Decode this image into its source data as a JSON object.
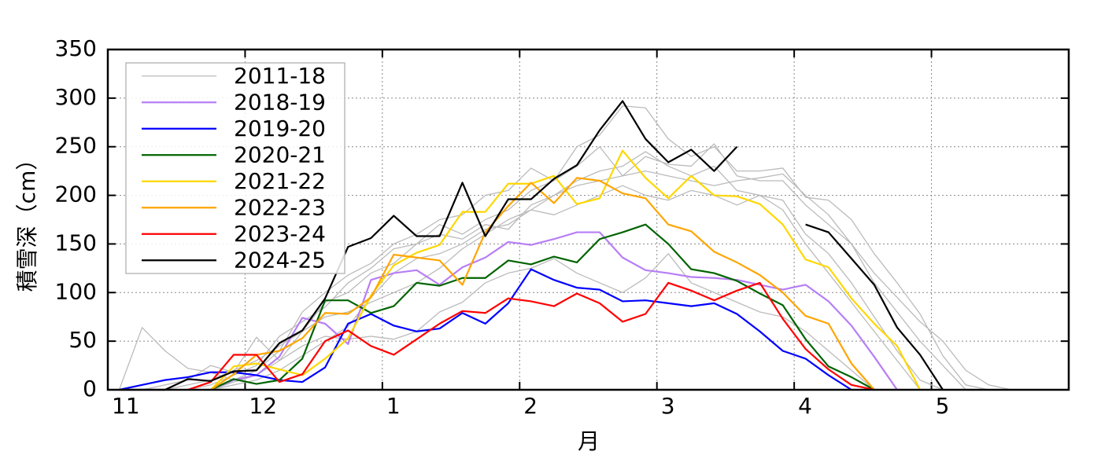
{
  "chart_data": {
    "type": "line",
    "xlabel": "月",
    "ylabel": "積雪深（cm）",
    "xlim": [
      0,
      7
    ],
    "ylim": [
      0,
      350
    ],
    "xticks": [
      {
        "value": 0,
        "label": "11"
      },
      {
        "value": 1,
        "label": "12"
      },
      {
        "value": 2,
        "label": "1"
      },
      {
        "value": 3,
        "label": "2"
      },
      {
        "value": 4,
        "label": "3"
      },
      {
        "value": 5,
        "label": "4"
      },
      {
        "value": 6,
        "label": "5"
      }
    ],
    "yticks": [
      0,
      50,
      100,
      150,
      200,
      250,
      300,
      350
    ],
    "grid": true,
    "legend": "upper left",
    "x": [
      0.083,
      0.25,
      0.417,
      0.583,
      0.75,
      0.917,
      1.083,
      1.25,
      1.417,
      1.583,
      1.75,
      1.917,
      2.083,
      2.25,
      2.417,
      2.583,
      2.75,
      2.917,
      3.083,
      3.25,
      3.417,
      3.583,
      3.75,
      3.917,
      4.083,
      4.25,
      4.417,
      4.583,
      4.75,
      4.917,
      5.083,
      5.25,
      5.417,
      5.583,
      5.75,
      5.917,
      6.083,
      6.25,
      6.417,
      6.583,
      6.75,
      6.917
    ],
    "series": [
      {
        "name": "2011-18",
        "color": "#bbbbbb",
        "values": [
          [
            0,
            64,
            40,
            22,
            18,
            10,
            20,
            40,
            80,
            100,
            118,
            130,
            150,
            160,
            175,
            180,
            200,
            205,
            228,
            215,
            250,
            262,
            292,
            290,
            258,
            240,
            250,
            225,
            225,
            228,
            198,
            195,
            175,
            140,
            110,
            78,
            35,
            5,
            0,
            0,
            0,
            0
          ],
          [
            0,
            0,
            5,
            10,
            25,
            18,
            54,
            30,
            60,
            90,
            100,
            120,
            130,
            150,
            170,
            160,
            175,
            185,
            205,
            215,
            230,
            250,
            220,
            240,
            232,
            230,
            253,
            220,
            215,
            215,
            190,
            170,
            150,
            110,
            80,
            50,
            25,
            0,
            0,
            0,
            0,
            0
          ],
          [
            0,
            0,
            0,
            0,
            5,
            15,
            25,
            55,
            70,
            85,
            110,
            125,
            145,
            150,
            160,
            155,
            170,
            165,
            190,
            200,
            215,
            225,
            230,
            245,
            230,
            220,
            230,
            205,
            200,
            195,
            160,
            140,
            110,
            75,
            40,
            10,
            0,
            0,
            0,
            0,
            0,
            0
          ],
          [
            0,
            0,
            0,
            5,
            10,
            20,
            30,
            45,
            60,
            75,
            80,
            90,
            100,
            110,
            125,
            145,
            160,
            175,
            185,
            180,
            190,
            200,
            210,
            200,
            195,
            205,
            200,
            190,
            200,
            185,
            150,
            120,
            90,
            60,
            30,
            0,
            0,
            0,
            0,
            0,
            0,
            0
          ],
          [
            0,
            0,
            0,
            0,
            0,
            8,
            15,
            30,
            45,
            55,
            52,
            55,
            52,
            60,
            80,
            90,
            110,
            120,
            125,
            135,
            120,
            110,
            100,
            115,
            140,
            110,
            100,
            90,
            80,
            75,
            60,
            40,
            20,
            0,
            0,
            0,
            0,
            0,
            0,
            0,
            0,
            0
          ],
          [
            0,
            0,
            0,
            0,
            0,
            5,
            10,
            20,
            35,
            50,
            65,
            95,
            120,
            135,
            140,
            150,
            165,
            170,
            185,
            200,
            210,
            215,
            220,
            225,
            220,
            215,
            210,
            215,
            218,
            222,
            200,
            180,
            150,
            120,
            95,
            70,
            50,
            20,
            5,
            0,
            0,
            0
          ]
        ]
      },
      {
        "name": "2018-19",
        "color": "#b77ef5",
        "values": [
          null,
          null,
          null,
          null,
          0,
          10,
          15,
          34,
          74,
          68,
          47,
          113,
          120,
          123,
          108,
          126,
          136,
          152,
          149,
          155,
          162,
          162,
          136,
          123,
          120,
          116,
          115,
          113,
          108,
          103,
          108,
          91,
          66,
          34,
          0,
          null,
          null,
          null,
          null,
          null,
          null,
          null
        ]
      },
      {
        "name": "2019-20",
        "color": "#0000ff",
        "values": [
          0,
          5,
          10,
          13,
          18,
          18,
          15,
          10,
          8,
          23,
          68,
          78,
          66,
          60,
          63,
          79,
          68,
          89,
          124,
          113,
          105,
          103,
          91,
          92,
          89,
          86,
          89,
          78,
          60,
          40,
          32,
          15,
          0,
          null,
          null,
          null,
          null,
          null,
          null,
          null,
          null,
          null
        ]
      },
      {
        "name": "2020-21",
        "color": "#006400",
        "values": [
          null,
          null,
          null,
          null,
          0,
          11,
          6,
          10,
          32,
          92,
          92,
          79,
          86,
          110,
          107,
          115,
          115,
          133,
          129,
          137,
          131,
          155,
          162,
          170,
          150,
          124,
          120,
          112,
          99,
          87,
          52,
          24,
          13,
          0,
          null,
          null,
          null,
          null,
          null,
          null,
          null,
          null
        ]
      },
      {
        "name": "2021-22",
        "color": "#ffd700",
        "values": [
          null,
          null,
          null,
          null,
          0,
          24,
          27,
          21,
          15,
          32,
          53,
          97,
          128,
          141,
          149,
          183,
          183,
          212,
          212,
          220,
          191,
          197,
          246,
          218,
          197,
          220,
          200,
          199,
          191,
          170,
          134,
          126,
          94,
          68,
          45,
          0,
          null,
          null,
          null,
          null,
          null,
          null
        ]
      },
      {
        "name": "2022-23",
        "color": "#ffa500",
        "values": [
          null,
          null,
          null,
          null,
          0,
          16,
          36,
          40,
          53,
          79,
          78,
          95,
          139,
          136,
          133,
          108,
          162,
          189,
          213,
          192,
          218,
          215,
          202,
          197,
          170,
          163,
          142,
          131,
          118,
          100,
          76,
          68,
          27,
          0,
          null,
          null,
          null,
          null,
          null,
          null,
          null,
          null
        ]
      },
      {
        "name": "2023-24",
        "color": "#ff0000",
        "values": [
          null,
          null,
          null,
          0,
          8,
          36,
          36,
          8,
          16,
          50,
          61,
          45,
          36,
          52,
          68,
          81,
          79,
          94,
          91,
          86,
          99,
          89,
          70,
          78,
          110,
          102,
          92,
          102,
          110,
          73,
          42,
          21,
          5,
          0,
          null,
          null,
          null,
          null,
          null,
          null,
          null,
          null
        ]
      },
      {
        "name": "2024-25",
        "color": "#000000",
        "values": [
          0,
          0,
          0,
          11,
          9,
          19,
          20,
          48,
          61,
          94,
          147,
          156,
          179,
          158,
          158,
          213,
          158,
          196,
          196,
          217,
          231,
          267,
          297,
          258,
          234,
          247,
          225,
          250,
          null,
          null,
          170,
          162,
          135,
          108,
          64,
          36,
          0,
          null,
          null,
          null,
          null,
          null
        ]
      }
    ]
  }
}
